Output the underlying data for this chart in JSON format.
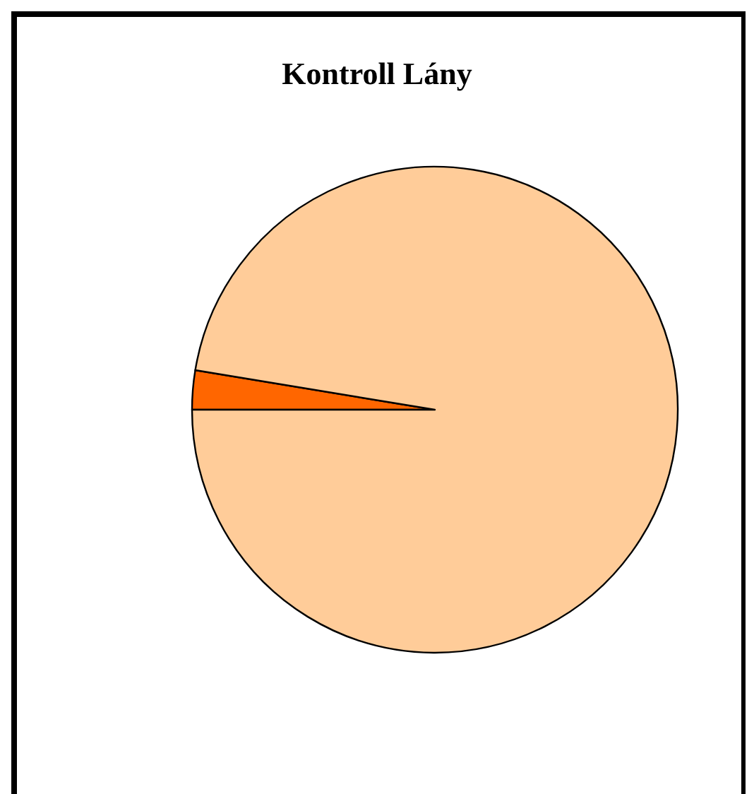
{
  "chart_data": {
    "type": "pie",
    "title": "Kontroll Lány",
    "categories": [
      null,
      null
    ],
    "values": [
      2.6,
      97.4
    ],
    "colors": [
      "#ff6600",
      "#ffcc99"
    ]
  }
}
